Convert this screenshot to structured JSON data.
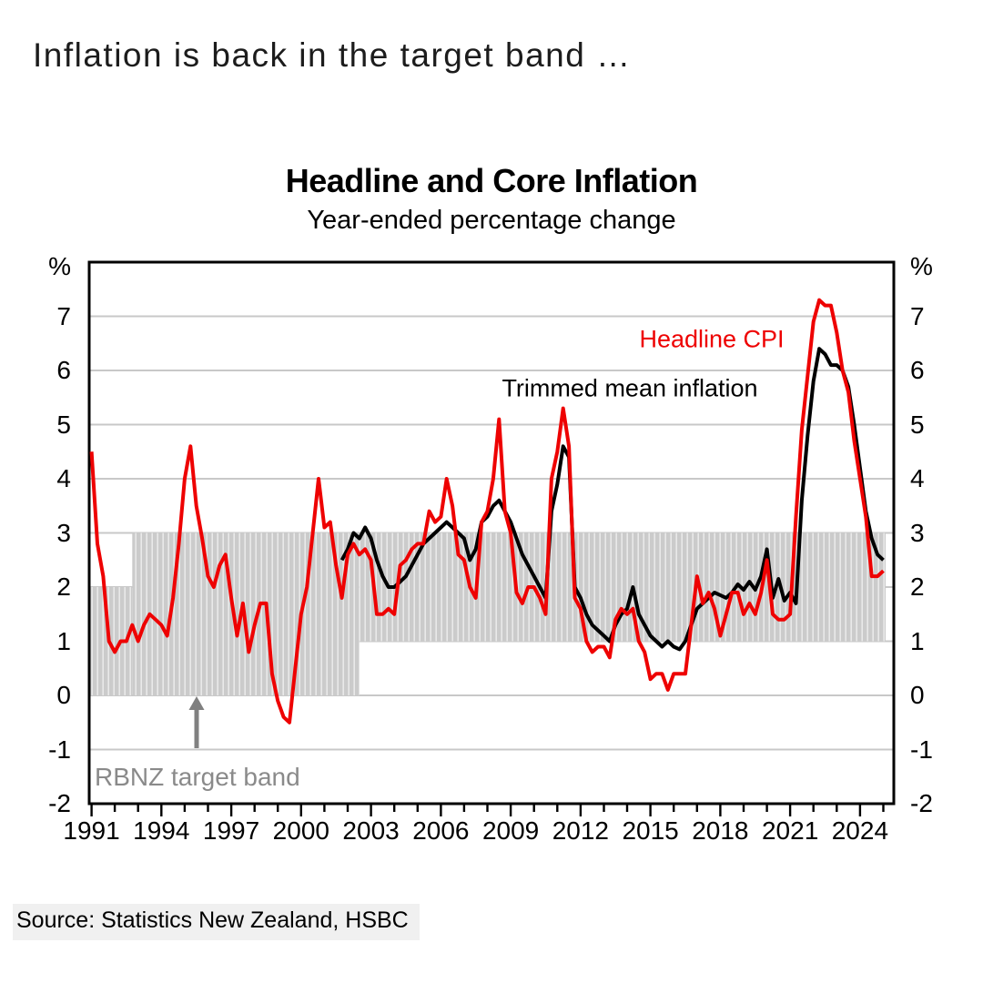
{
  "page": {
    "headline": "Inflation is back in the target band …",
    "source": "Source: Statistics New Zealand, HSBC"
  },
  "chart_data": {
    "type": "line",
    "title": "Headline and Core Inflation",
    "subtitle": "Year-ended percentage change",
    "unit_label": "%",
    "x_axis": {
      "range": [
        1990.9,
        2025.45
      ],
      "tick_years": [
        1991,
        1994,
        1997,
        2000,
        2003,
        2006,
        2009,
        2012,
        2015,
        2018,
        2021,
        2024
      ],
      "minor_tick_step": 1
    },
    "y_axis": {
      "range": [
        -2,
        8
      ],
      "ticks": [
        7,
        6,
        5,
        4,
        3,
        2,
        1,
        0,
        -1,
        -2
      ],
      "grid_color": "#c8c8c8"
    },
    "series": [
      {
        "name": "Headline CPI",
        "color": "#ee0202",
        "start": 1991.0,
        "step": 0.25,
        "values": [
          4.5,
          2.8,
          2.2,
          1.0,
          0.8,
          1.0,
          1.0,
          1.3,
          1.0,
          1.3,
          1.5,
          1.4,
          1.3,
          1.1,
          1.8,
          2.8,
          4.0,
          4.6,
          3.5,
          2.9,
          2.2,
          2.0,
          2.4,
          2.6,
          1.8,
          1.1,
          1.7,
          0.8,
          1.3,
          1.7,
          1.7,
          0.4,
          -0.1,
          -0.4,
          -0.5,
          0.5,
          1.5,
          2.0,
          3.0,
          4.0,
          3.1,
          3.2,
          2.4,
          1.8,
          2.6,
          2.8,
          2.6,
          2.7,
          2.5,
          1.5,
          1.5,
          1.6,
          1.5,
          2.4,
          2.5,
          2.7,
          2.8,
          2.8,
          3.4,
          3.2,
          3.3,
          4.0,
          3.5,
          2.6,
          2.5,
          2.0,
          1.8,
          3.2,
          3.4,
          4.0,
          5.1,
          3.4,
          3.0,
          1.9,
          1.7,
          2.0,
          2.0,
          1.8,
          1.5,
          4.0,
          4.5,
          5.3,
          4.6,
          1.8,
          1.6,
          1.0,
          0.8,
          0.9,
          0.9,
          0.7,
          1.4,
          1.6,
          1.5,
          1.6,
          1.0,
          0.8,
          0.3,
          0.4,
          0.4,
          0.1,
          0.4,
          0.4,
          0.4,
          1.3,
          2.2,
          1.7,
          1.9,
          1.6,
          1.1,
          1.5,
          1.9,
          1.9,
          1.5,
          1.7,
          1.5,
          1.9,
          2.5,
          1.5,
          1.4,
          1.4,
          1.5,
          3.3,
          4.9,
          5.9,
          6.9,
          7.3,
          7.2,
          7.2,
          6.7,
          6.0,
          5.6,
          4.7,
          4.0,
          3.3,
          2.2,
          2.2,
          2.3
        ]
      },
      {
        "name": "Trimmed mean inflation",
        "color": "#000000",
        "start": 2001.75,
        "step": 0.25,
        "values": [
          2.5,
          2.7,
          3.0,
          2.9,
          3.1,
          2.9,
          2.5,
          2.2,
          2.0,
          2.0,
          2.1,
          2.2,
          2.4,
          2.6,
          2.8,
          2.9,
          3.0,
          3.1,
          3.2,
          3.1,
          3.0,
          2.9,
          2.5,
          2.7,
          3.2,
          3.3,
          3.5,
          3.6,
          3.4,
          3.2,
          2.9,
          2.6,
          2.4,
          2.2,
          2.0,
          1.8,
          3.4,
          3.9,
          4.6,
          4.4,
          2.0,
          1.8,
          1.5,
          1.3,
          1.2,
          1.1,
          1.0,
          1.3,
          1.5,
          1.6,
          2.0,
          1.5,
          1.3,
          1.1,
          1.0,
          0.9,
          1.0,
          0.9,
          0.85,
          1.0,
          1.3,
          1.6,
          1.7,
          1.8,
          1.9,
          1.85,
          1.8,
          1.9,
          2.05,
          1.95,
          2.1,
          1.95,
          2.2,
          2.7,
          1.8,
          2.15,
          1.75,
          1.9,
          1.7,
          3.6,
          4.8,
          5.8,
          6.4,
          6.3,
          6.1,
          6.1,
          6.0,
          5.7,
          5.0,
          4.2,
          3.4,
          2.9,
          2.6,
          2.5
        ]
      }
    ],
    "target_band": {
      "label": "RBNZ target band",
      "fill_color": "#cbcbcb",
      "stripe_color": "#e9e9e9",
      "segments": [
        {
          "from": 1990.9,
          "to": 1992.75,
          "low": 0,
          "high": 2
        },
        {
          "from": 1992.75,
          "to": 2002.5,
          "low": 0,
          "high": 3
        },
        {
          "from": 2002.5,
          "to": 2025.1,
          "low": 1,
          "high": 3
        }
      ]
    }
  }
}
